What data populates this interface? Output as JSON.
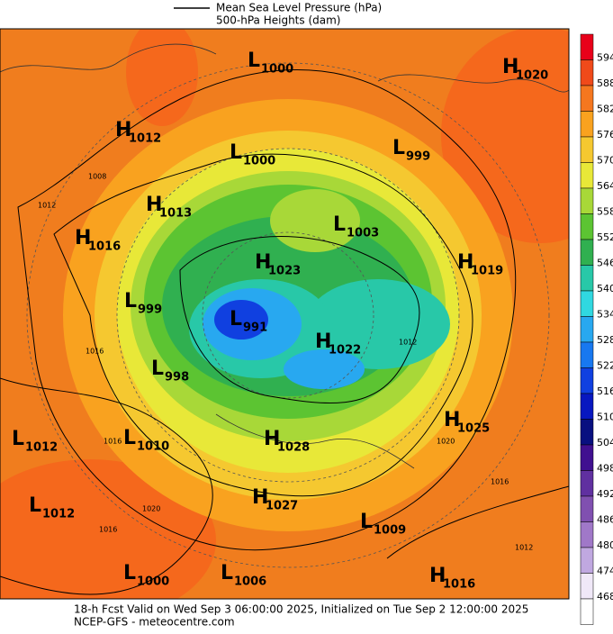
{
  "header": {
    "legend": [
      "Mean Sea Level Pressure (hPa)",
      "500-hPa Heights (dam)"
    ]
  },
  "centers": [
    {
      "type": "L",
      "value": 1000
    },
    {
      "type": "H",
      "value": 1020
    },
    {
      "type": "H",
      "value": 1012
    },
    {
      "type": "L",
      "value": 1000
    },
    {
      "type": "L",
      "value": 999
    },
    {
      "type": "H",
      "value": 1013
    },
    {
      "type": "L",
      "value": 1003
    },
    {
      "type": "H",
      "value": 1016
    },
    {
      "type": "H",
      "value": 1023
    },
    {
      "type": "H",
      "value": 1019
    },
    {
      "type": "L",
      "value": 999
    },
    {
      "type": "L",
      "value": 991
    },
    {
      "type": "H",
      "value": 1022
    },
    {
      "type": "L",
      "value": 998
    },
    {
      "type": "H",
      "value": 1025
    },
    {
      "type": "L",
      "value": 1012
    },
    {
      "type": "L",
      "value": 1010
    },
    {
      "type": "H",
      "value": 1028
    },
    {
      "type": "H",
      "value": 1027
    },
    {
      "type": "L",
      "value": 1012
    },
    {
      "type": "L",
      "value": 1009
    },
    {
      "type": "L",
      "value": 1000
    },
    {
      "type": "L",
      "value": 1006
    },
    {
      "type": "H",
      "value": 1016
    }
  ],
  "isobar_labels": [
    1008,
    1012,
    1016,
    1016,
    1020,
    1016,
    1012,
    1020,
    1016,
    1012
  ],
  "colorbar": {
    "labels": [
      594,
      588,
      582,
      576,
      570,
      564,
      558,
      552,
      546,
      540,
      534,
      528,
      522,
      516,
      510,
      504,
      498,
      492,
      486,
      480,
      474,
      468
    ],
    "colors": [
      "#e8001a",
      "#f04a1a",
      "#f5771f",
      "#f9a21f",
      "#f5c830",
      "#e8e838",
      "#a8d838",
      "#5cc432",
      "#30b050",
      "#28c8a8",
      "#30d8e0",
      "#28a8f0",
      "#1878f0",
      "#1040e0",
      "#0818c0",
      "#081080",
      "#401090",
      "#6030a0",
      "#8050b0",
      "#a078c8",
      "#c0a8e0",
      "#f0e8f8"
    ]
  },
  "footer": [
    "18-h Fcst Valid on Wed Sep  3 06:00:00 2025, Initialized on Tue Sep  2 12:00:00 2025",
    "NCEP-GFS  -  meteocentre.com"
  ]
}
